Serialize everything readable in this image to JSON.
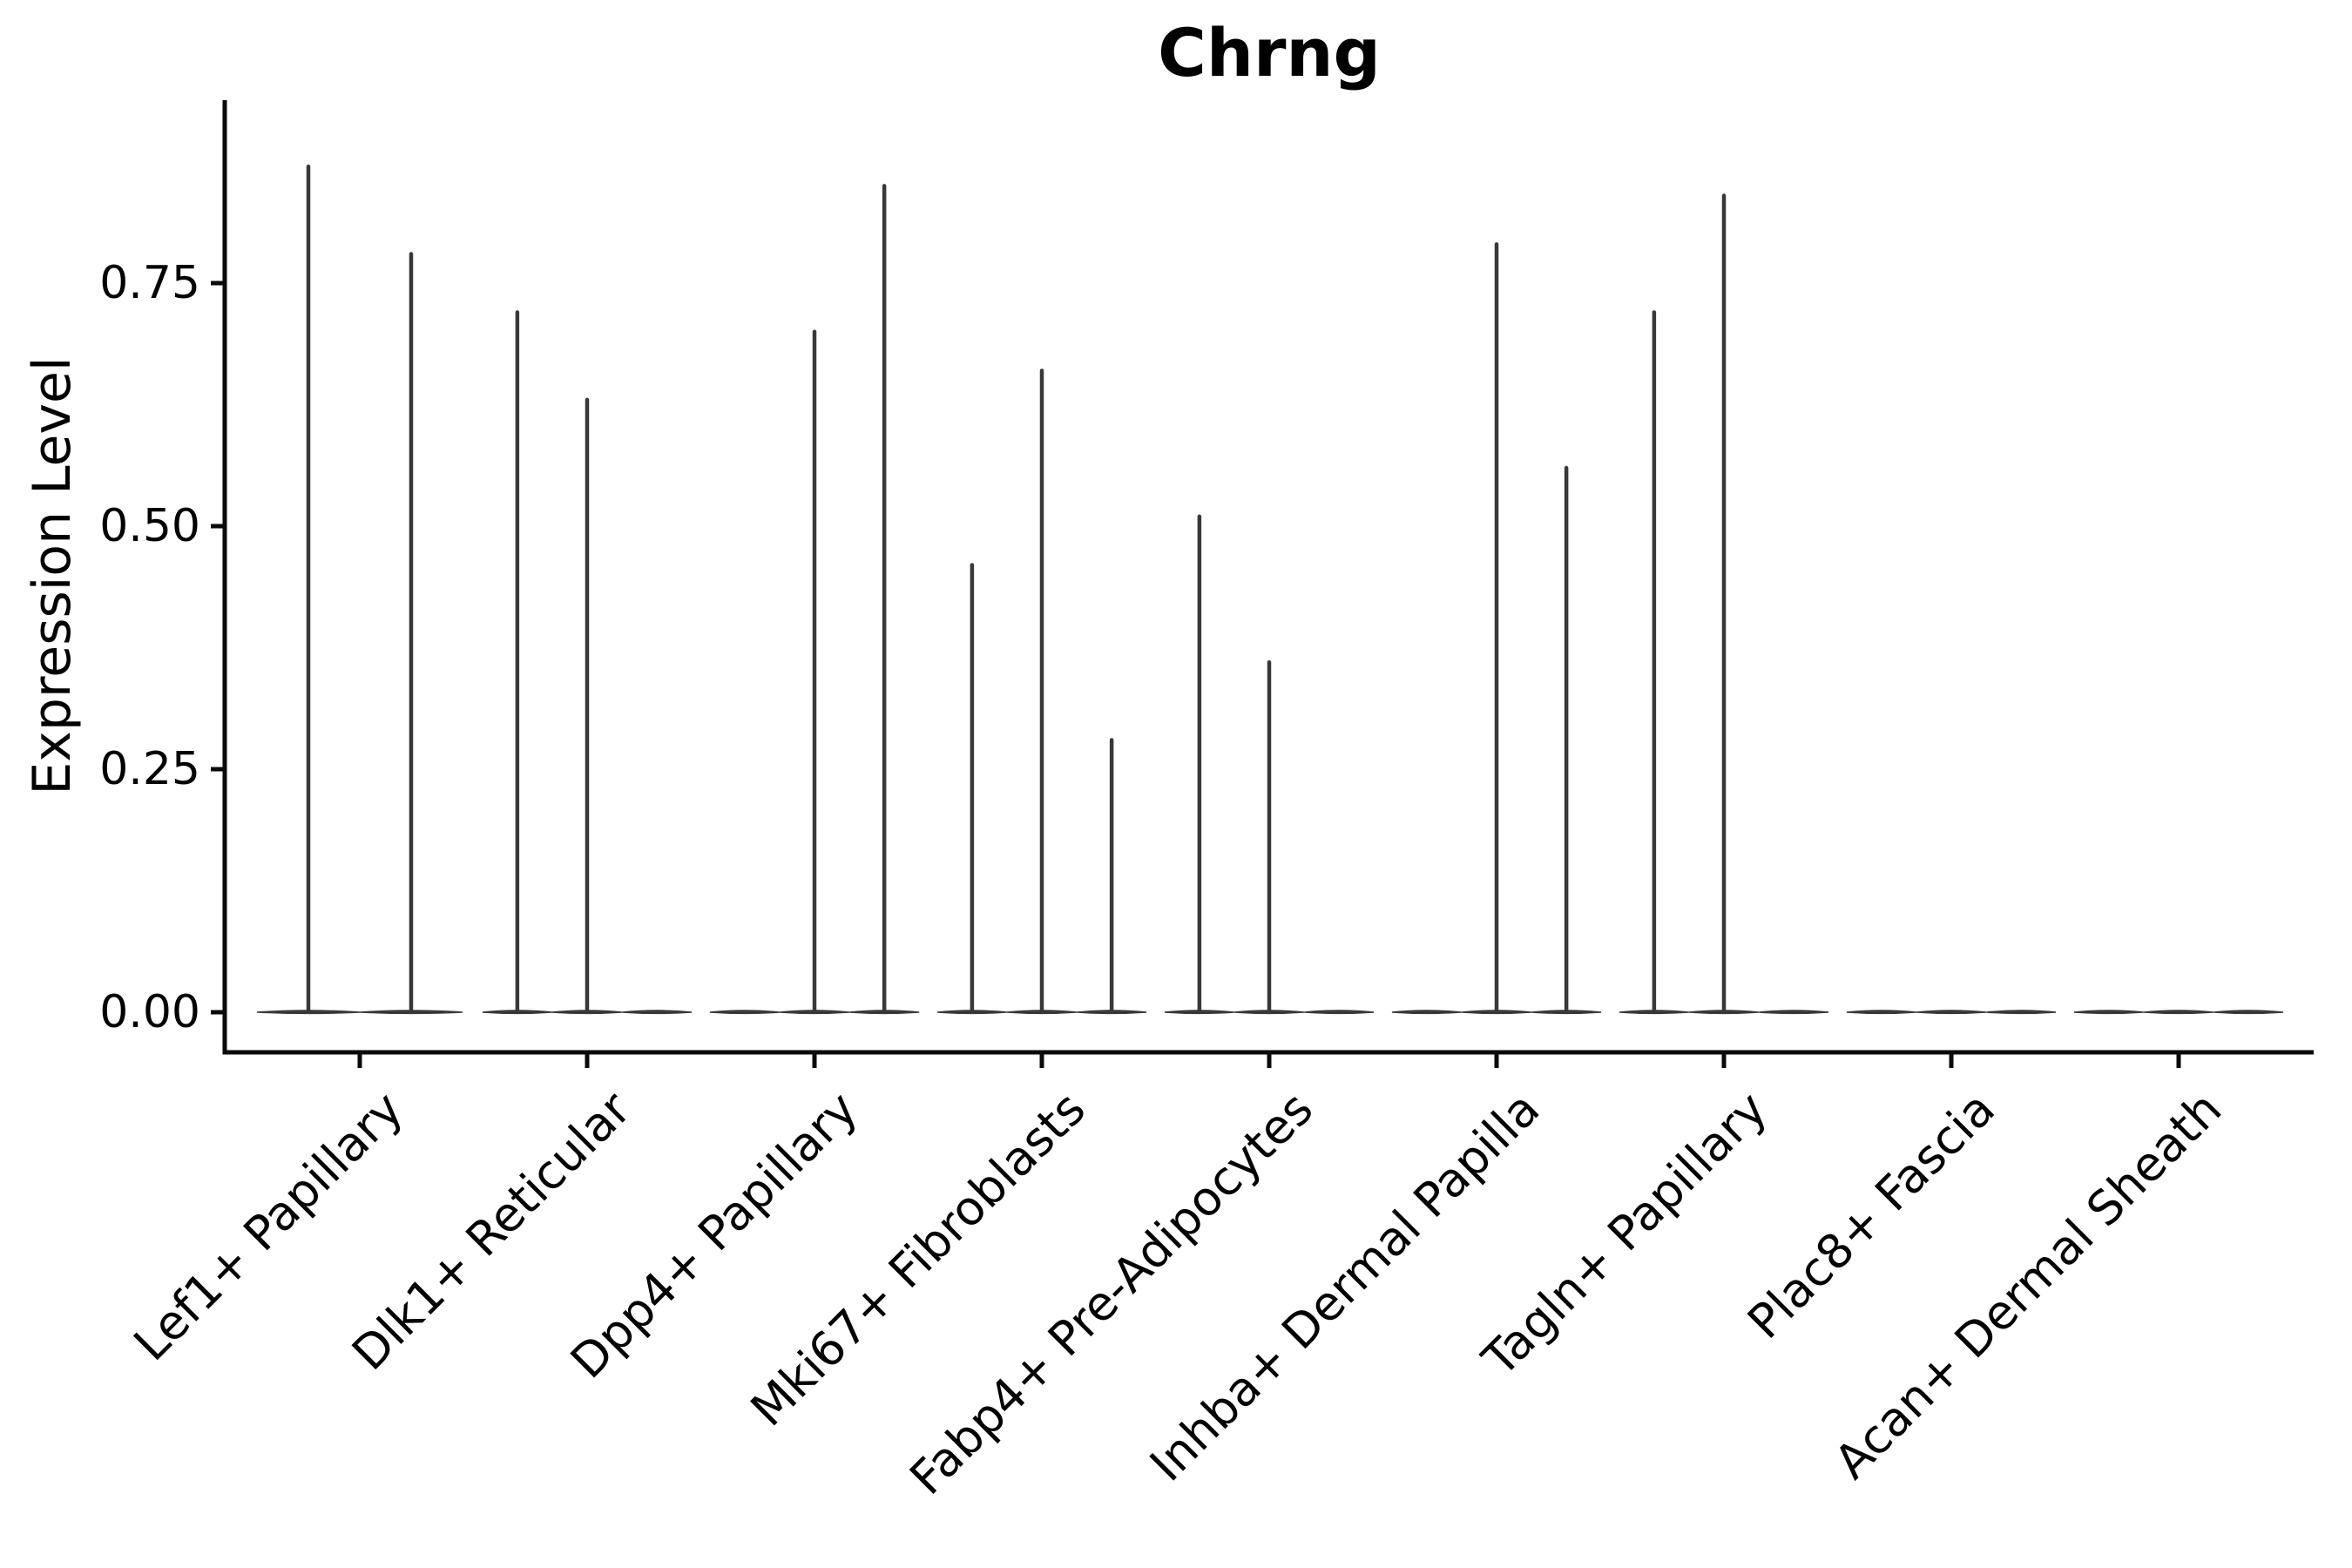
{
  "title": "Chrng",
  "chart_data": {
    "type": "violin",
    "title": "Chrng",
    "ylabel": "Expression Level",
    "xlabel": "",
    "ylim": [
      -0.04,
      0.94
    ],
    "grid": false,
    "legend_position": "none",
    "background": "#ffffff",
    "colors": {
      "violin": "#383838",
      "axis": "#0a0a0a",
      "text": "#000000"
    },
    "yticks": [
      {
        "value": 0.0,
        "label": "0.00"
      },
      {
        "value": 0.25,
        "label": "0.25"
      },
      {
        "value": 0.5,
        "label": "0.50"
      },
      {
        "value": 0.75,
        "label": "0.75"
      }
    ],
    "description": "Violin plot of Chrng expression; nearly all density collapsed at 0 with thin spikes up to the max expressing cell per group",
    "categories": [
      {
        "label": "Lef1+ Papillary",
        "violins": [
          {
            "offset": -0.226,
            "half_width": 0.226,
            "peak": 0.87
          },
          {
            "offset": 0.226,
            "half_width": 0.226,
            "peak": 0.78
          }
        ]
      },
      {
        "label": "Dlk1+ Reticular",
        "violins": [
          {
            "offset": -0.307,
            "half_width": 0.153,
            "peak": 0.72
          },
          {
            "offset": 0.0,
            "half_width": 0.153,
            "peak": 0.63
          },
          {
            "offset": 0.307,
            "half_width": 0.153,
            "peak": 0
          }
        ]
      },
      {
        "label": "Dpp4+ Papillary",
        "violins": [
          {
            "offset": -0.307,
            "half_width": 0.153,
            "peak": 0
          },
          {
            "offset": 0.0,
            "half_width": 0.153,
            "peak": 0.7
          },
          {
            "offset": 0.307,
            "half_width": 0.153,
            "peak": 0.85
          }
        ]
      },
      {
        "label": "Mki67+ Fibroblasts",
        "violins": [
          {
            "offset": -0.307,
            "half_width": 0.153,
            "peak": 0.46
          },
          {
            "offset": 0.0,
            "half_width": 0.153,
            "peak": 0.66
          },
          {
            "offset": 0.307,
            "half_width": 0.153,
            "peak": 0.28
          }
        ]
      },
      {
        "label": "Fabp4+ Pre-Adipocytes",
        "violins": [
          {
            "offset": -0.307,
            "half_width": 0.153,
            "peak": 0.51
          },
          {
            "offset": 0.0,
            "half_width": 0.153,
            "peak": 0.36
          },
          {
            "offset": 0.307,
            "half_width": 0.153,
            "peak": 0
          }
        ]
      },
      {
        "label": "Inhba+ Dermal Papilla",
        "violins": [
          {
            "offset": -0.307,
            "half_width": 0.153,
            "peak": 0
          },
          {
            "offset": 0.0,
            "half_width": 0.153,
            "peak": 0.79
          },
          {
            "offset": 0.307,
            "half_width": 0.153,
            "peak": 0.56
          }
        ]
      },
      {
        "label": "Tagln+ Papillary",
        "violins": [
          {
            "offset": -0.307,
            "half_width": 0.153,
            "peak": 0.72
          },
          {
            "offset": 0.0,
            "half_width": 0.153,
            "peak": 0.84
          },
          {
            "offset": 0.307,
            "half_width": 0.153,
            "peak": 0
          }
        ]
      },
      {
        "label": "Plac8+ Fascia",
        "violins": [
          {
            "offset": -0.307,
            "half_width": 0.153,
            "peak": 0
          },
          {
            "offset": 0.0,
            "half_width": 0.153,
            "peak": 0
          },
          {
            "offset": 0.307,
            "half_width": 0.153,
            "peak": 0
          }
        ]
      },
      {
        "label": "Acan+ Dermal Sheath",
        "violins": [
          {
            "offset": -0.307,
            "half_width": 0.153,
            "peak": 0
          },
          {
            "offset": 0.0,
            "half_width": 0.153,
            "peak": 0
          },
          {
            "offset": 0.307,
            "half_width": 0.153,
            "peak": 0
          }
        ]
      }
    ]
  }
}
